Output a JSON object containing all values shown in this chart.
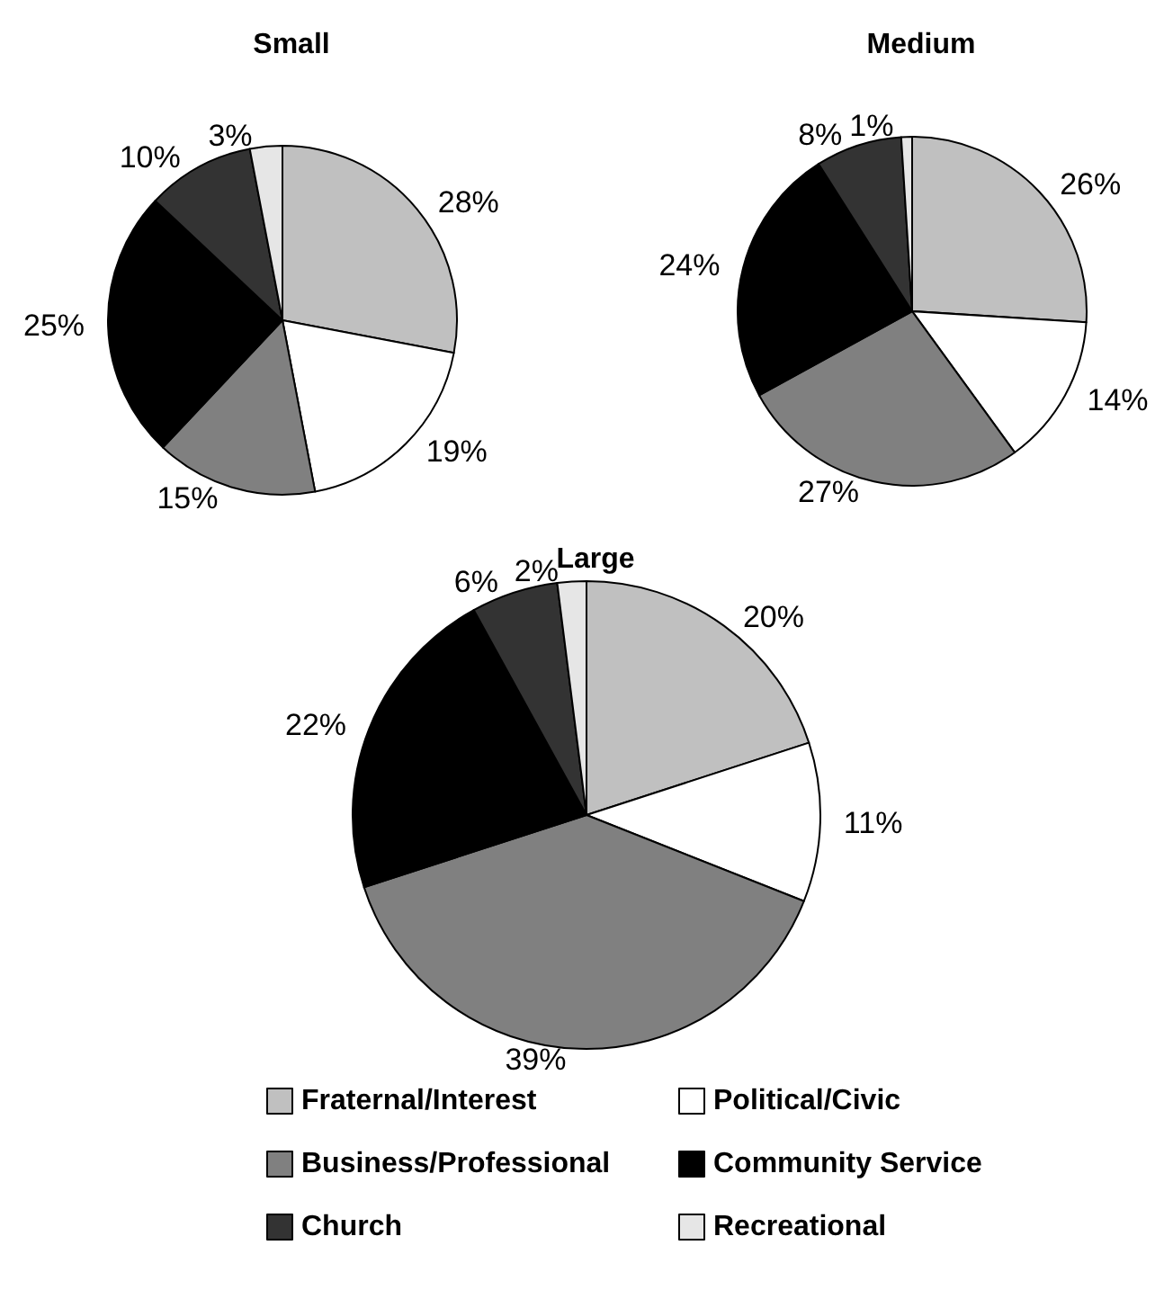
{
  "chart_data": {
    "type": "pie",
    "categories": [
      "Fraternal/Interest",
      "Political/Civic",
      "Business/Professional",
      "Community Service",
      "Church",
      "Recreational"
    ],
    "colors": [
      "#c0c0c0",
      "#ffffff",
      "#808080",
      "#000000",
      "#333333",
      "#e6e6e6"
    ],
    "series": [
      {
        "name": "Small",
        "values": [
          28,
          19,
          15,
          25,
          10,
          3
        ],
        "value_labels": [
          "28%",
          "19%",
          "15%",
          "25%",
          "10%",
          "3%"
        ]
      },
      {
        "name": "Medium",
        "values": [
          26,
          14,
          27,
          24,
          8,
          1
        ],
        "value_labels": [
          "26%",
          "14%",
          "27%",
          "24%",
          "8%",
          "1%"
        ]
      },
      {
        "name": "Large",
        "values": [
          20,
          11,
          39,
          22,
          6,
          2
        ],
        "value_labels": [
          "20%",
          "11%",
          "39%",
          "22%",
          "6%",
          "2%"
        ]
      }
    ],
    "legend": "bottom"
  }
}
